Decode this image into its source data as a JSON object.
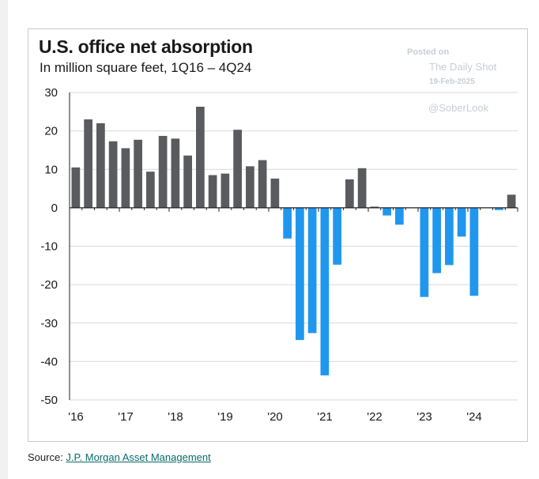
{
  "header": {
    "title": "U.S. office net absorption",
    "subtitle": "In million square feet, 1Q16 – 4Q24"
  },
  "watermark": {
    "posted": "Posted on",
    "name": "The Daily Shot",
    "date": "19-Feb-2025",
    "handle": "@SoberLook"
  },
  "source": {
    "prefix": "Source: ",
    "link_text": "J.P. Morgan Asset Management"
  },
  "colors": {
    "positive": "#595b5e",
    "negative": "#1f97ee",
    "grid": "#d9d9d9",
    "axis": "#222222"
  },
  "chart_data": {
    "type": "bar",
    "title": "U.S. office net absorption",
    "subtitle": "In million square feet, 1Q16 – 4Q24",
    "xlabel": "",
    "ylabel": "",
    "ylim": [
      -50,
      30
    ],
    "yticks": [
      30,
      20,
      10,
      0,
      -10,
      -20,
      -30,
      -40,
      -50
    ],
    "ytick_labels": [
      "30",
      "20",
      "10",
      "0",
      "-10",
      "-20",
      "-30",
      "-40",
      "-50"
    ],
    "xtick_labels": [
      "'16",
      "'17",
      "'18",
      "'19",
      "'20",
      "'21",
      "'22",
      "'23",
      "'24"
    ],
    "grid": true,
    "categories": [
      "1Q16",
      "2Q16",
      "3Q16",
      "4Q16",
      "1Q17",
      "2Q17",
      "3Q17",
      "4Q17",
      "1Q18",
      "2Q18",
      "3Q18",
      "4Q18",
      "1Q19",
      "2Q19",
      "3Q19",
      "4Q19",
      "1Q20",
      "2Q20",
      "3Q20",
      "4Q20",
      "1Q21",
      "2Q21",
      "3Q21",
      "4Q21",
      "1Q22",
      "2Q22",
      "3Q22",
      "4Q22",
      "1Q23",
      "2Q23",
      "3Q23",
      "4Q23",
      "1Q24",
      "2Q24",
      "3Q24",
      "4Q24"
    ],
    "values": [
      10.5,
      23.0,
      22.0,
      17.3,
      15.5,
      17.7,
      9.4,
      18.7,
      18.0,
      13.6,
      26.3,
      8.5,
      8.9,
      20.3,
      10.8,
      12.4,
      7.6,
      -8.0,
      -34.4,
      -32.6,
      -43.6,
      -14.8,
      7.4,
      10.3,
      0.3,
      -2.0,
      -4.4,
      0,
      -23.2,
      -17.0,
      -14.9,
      -7.5,
      -22.9,
      0,
      -0.6,
      3.4
    ]
  }
}
